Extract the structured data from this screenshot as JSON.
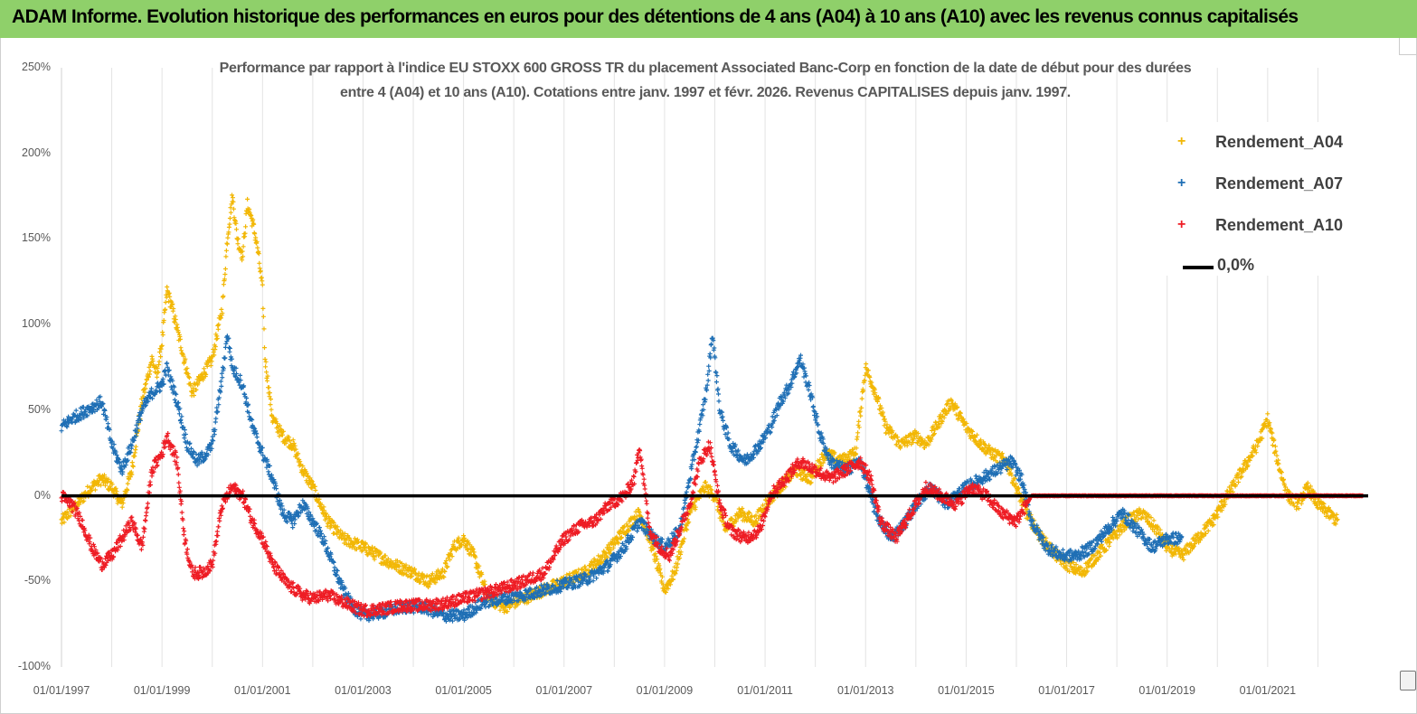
{
  "banner": {
    "title": "ADAM Informe. Evolution historique des performances en euros pour des détentions de 4 ans (A04) à 10 ans (A10) avec les revenus connus capitalisés"
  },
  "chart_data": {
    "type": "scatter",
    "title_line1": "Performance par rapport à l'indice EU STOXX 600 GROSS TR  du placement Associated Banc-Corp en fonction de la date de début pour des durées",
    "title_line2": "entre 4 (A04) et 10 ans (A10). Cotations entre janv. 1997 et févr. 2026. Revenus CAPITALISES depuis janv. 1997.",
    "x_range": [
      "01/01/1997",
      "01/01/2023"
    ],
    "y_range": [
      -100,
      250
    ],
    "y_ticks": [
      "250%",
      "200%",
      "150%",
      "100%",
      "50%",
      "0%",
      "-50%",
      "-100%"
    ],
    "x_ticks": [
      "01/01/1997",
      "01/01/1999",
      "01/01/2001",
      "01/01/2003",
      "01/01/2005",
      "01/01/2007",
      "01/01/2009",
      "01/01/2011",
      "01/01/2013",
      "01/01/2015",
      "01/01/2017",
      "01/01/2019",
      "01/01/2021"
    ],
    "grid": "vertical",
    "legend_position": "top-right",
    "legend": [
      {
        "key": "A04",
        "label": "Rendement_A04"
      },
      {
        "key": "A07",
        "label": "Rendement_A07"
      },
      {
        "key": "A10",
        "label": "Rendement_A10"
      },
      {
        "key": "zero",
        "label": "0,0%"
      }
    ],
    "colors": {
      "A04": "#f2b705",
      "A07": "#1f6fb5",
      "A10": "#ee1c24",
      "zero": "#000000"
    },
    "series": [
      {
        "key": "A04",
        "name": "Rendement_A04",
        "points": [
          [
            1997.0,
            -15
          ],
          [
            1997.3,
            -5
          ],
          [
            1997.6,
            5
          ],
          [
            1997.8,
            10
          ],
          [
            1998.0,
            5
          ],
          [
            1998.2,
            -5
          ],
          [
            1998.4,
            15
          ],
          [
            1998.6,
            55
          ],
          [
            1998.8,
            80
          ],
          [
            1998.9,
            70
          ],
          [
            1999.0,
            90
          ],
          [
            1999.1,
            120
          ],
          [
            1999.2,
            110
          ],
          [
            1999.4,
            85
          ],
          [
            1999.6,
            60
          ],
          [
            1999.8,
            70
          ],
          [
            2000.0,
            80
          ],
          [
            2000.2,
            110
          ],
          [
            2000.3,
            150
          ],
          [
            2000.4,
            175
          ],
          [
            2000.5,
            150
          ],
          [
            2000.6,
            140
          ],
          [
            2000.7,
            170
          ],
          [
            2000.8,
            160
          ],
          [
            2000.9,
            145
          ],
          [
            2001.0,
            120
          ],
          [
            2001.05,
            80
          ],
          [
            2001.2,
            45
          ],
          [
            2001.4,
            35
          ],
          [
            2001.6,
            30
          ],
          [
            2001.8,
            15
          ],
          [
            2002.0,
            5
          ],
          [
            2002.3,
            -15
          ],
          [
            2002.6,
            -25
          ],
          [
            2003.0,
            -30
          ],
          [
            2003.3,
            -35
          ],
          [
            2003.6,
            -40
          ],
          [
            2004.0,
            -45
          ],
          [
            2004.3,
            -50
          ],
          [
            2004.6,
            -45
          ],
          [
            2004.8,
            -30
          ],
          [
            2005.0,
            -25
          ],
          [
            2005.2,
            -35
          ],
          [
            2005.5,
            -60
          ],
          [
            2005.8,
            -65
          ],
          [
            2006.2,
            -60
          ],
          [
            2006.6,
            -55
          ],
          [
            2007.0,
            -50
          ],
          [
            2007.4,
            -45
          ],
          [
            2007.8,
            -35
          ],
          [
            2008.2,
            -20
          ],
          [
            2008.5,
            -10
          ],
          [
            2008.7,
            -25
          ],
          [
            2009.0,
            -55
          ],
          [
            2009.2,
            -45
          ],
          [
            2009.5,
            -10
          ],
          [
            2009.8,
            5
          ],
          [
            2010.0,
            0
          ],
          [
            2010.2,
            -20
          ],
          [
            2010.5,
            -10
          ],
          [
            2010.8,
            -15
          ],
          [
            2011.0,
            -5
          ],
          [
            2011.3,
            5
          ],
          [
            2011.6,
            15
          ],
          [
            2011.9,
            10
          ],
          [
            2012.2,
            25
          ],
          [
            2012.5,
            20
          ],
          [
            2012.8,
            25
          ],
          [
            2013.0,
            75
          ],
          [
            2013.2,
            60
          ],
          [
            2013.4,
            40
          ],
          [
            2013.7,
            30
          ],
          [
            2014.0,
            35
          ],
          [
            2014.2,
            30
          ],
          [
            2014.4,
            40
          ],
          [
            2014.7,
            55
          ],
          [
            2015.0,
            40
          ],
          [
            2015.3,
            30
          ],
          [
            2015.5,
            25
          ],
          [
            2015.8,
            20
          ],
          [
            2016.0,
            5
          ],
          [
            2016.2,
            -10
          ],
          [
            2016.5,
            -25
          ],
          [
            2016.8,
            -35
          ],
          [
            2017.0,
            -40
          ],
          [
            2017.3,
            -45
          ],
          [
            2017.6,
            -35
          ],
          [
            2017.9,
            -25
          ],
          [
            2018.2,
            -15
          ],
          [
            2018.5,
            -10
          ],
          [
            2018.8,
            -20
          ],
          [
            2019.0,
            -30
          ],
          [
            2019.3,
            -35
          ],
          [
            2019.6,
            -25
          ],
          [
            2019.9,
            -15
          ],
          [
            2020.2,
            0
          ],
          [
            2020.5,
            15
          ],
          [
            2020.8,
            30
          ],
          [
            2021.0,
            45
          ],
          [
            2021.2,
            20
          ],
          [
            2021.4,
            0
          ],
          [
            2021.6,
            -5
          ],
          [
            2021.8,
            5
          ],
          [
            2022.0,
            -5
          ],
          [
            2022.2,
            -10
          ],
          [
            2022.4,
            -15
          ]
        ]
      },
      {
        "key": "A07",
        "name": "Rendement_A07",
        "points": [
          [
            1997.0,
            40
          ],
          [
            1997.2,
            45
          ],
          [
            1997.5,
            50
          ],
          [
            1997.8,
            55
          ],
          [
            1998.0,
            30
          ],
          [
            1998.2,
            15
          ],
          [
            1998.4,
            30
          ],
          [
            1998.6,
            50
          ],
          [
            1998.8,
            60
          ],
          [
            1999.0,
            65
          ],
          [
            1999.1,
            75
          ],
          [
            1999.3,
            55
          ],
          [
            1999.5,
            30
          ],
          [
            1999.7,
            20
          ],
          [
            1999.9,
            25
          ],
          [
            2000.0,
            30
          ],
          [
            2000.2,
            70
          ],
          [
            2000.3,
            95
          ],
          [
            2000.4,
            75
          ],
          [
            2000.6,
            65
          ],
          [
            2000.8,
            40
          ],
          [
            2001.0,
            25
          ],
          [
            2001.2,
            10
          ],
          [
            2001.4,
            -10
          ],
          [
            2001.6,
            -15
          ],
          [
            2001.8,
            -5
          ],
          [
            2002.0,
            -15
          ],
          [
            2002.2,
            -25
          ],
          [
            2002.4,
            -40
          ],
          [
            2002.6,
            -55
          ],
          [
            2002.8,
            -65
          ],
          [
            2003.0,
            -70
          ],
          [
            2003.4,
            -68
          ],
          [
            2003.8,
            -65
          ],
          [
            2004.2,
            -65
          ],
          [
            2004.6,
            -70
          ],
          [
            2005.0,
            -70
          ],
          [
            2005.4,
            -62
          ],
          [
            2005.8,
            -60
          ],
          [
            2006.2,
            -58
          ],
          [
            2006.6,
            -55
          ],
          [
            2007.0,
            -52
          ],
          [
            2007.5,
            -48
          ],
          [
            2007.9,
            -40
          ],
          [
            2008.2,
            -30
          ],
          [
            2008.5,
            -15
          ],
          [
            2008.8,
            -25
          ],
          [
            2009.0,
            -30
          ],
          [
            2009.3,
            -20
          ],
          [
            2009.5,
            10
          ],
          [
            2009.7,
            40
          ],
          [
            2009.85,
            65
          ],
          [
            2009.95,
            95
          ],
          [
            2010.1,
            50
          ],
          [
            2010.3,
            30
          ],
          [
            2010.6,
            20
          ],
          [
            2010.9,
            30
          ],
          [
            2011.1,
            40
          ],
          [
            2011.3,
            55
          ],
          [
            2011.5,
            65
          ],
          [
            2011.7,
            80
          ],
          [
            2011.9,
            60
          ],
          [
            2012.1,
            35
          ],
          [
            2012.3,
            20
          ],
          [
            2012.6,
            15
          ],
          [
            2012.9,
            20
          ],
          [
            2013.2,
            -10
          ],
          [
            2013.5,
            -25
          ],
          [
            2013.8,
            -15
          ],
          [
            2014.0,
            -5
          ],
          [
            2014.3,
            5
          ],
          [
            2014.6,
            -5
          ],
          [
            2015.0,
            5
          ],
          [
            2015.3,
            10
          ],
          [
            2015.6,
            15
          ],
          [
            2015.9,
            20
          ],
          [
            2016.1,
            10
          ],
          [
            2016.3,
            -15
          ],
          [
            2016.6,
            -30
          ],
          [
            2016.9,
            -35
          ],
          [
            2017.2,
            -35
          ],
          [
            2017.5,
            -30
          ],
          [
            2017.8,
            -20
          ],
          [
            2018.1,
            -10
          ],
          [
            2018.4,
            -20
          ],
          [
            2018.7,
            -30
          ],
          [
            2019.0,
            -25
          ],
          [
            2019.3,
            -25
          ]
        ]
      },
      {
        "key": "A10",
        "name": "Rendement_A10",
        "points": [
          [
            1997.0,
            0
          ],
          [
            1997.2,
            -5
          ],
          [
            1997.4,
            -15
          ],
          [
            1997.6,
            -30
          ],
          [
            1997.8,
            -40
          ],
          [
            1998.0,
            -35
          ],
          [
            1998.2,
            -25
          ],
          [
            1998.4,
            -15
          ],
          [
            1998.6,
            -30
          ],
          [
            1998.8,
            15
          ],
          [
            1999.0,
            25
          ],
          [
            1999.1,
            35
          ],
          [
            1999.3,
            20
          ],
          [
            1999.45,
            -25
          ],
          [
            1999.6,
            -45
          ],
          [
            1999.8,
            -45
          ],
          [
            2000.0,
            -40
          ],
          [
            2000.2,
            -5
          ],
          [
            2000.4,
            5
          ],
          [
            2000.6,
            0
          ],
          [
            2000.8,
            -15
          ],
          [
            2001.0,
            -25
          ],
          [
            2001.2,
            -40
          ],
          [
            2001.5,
            -52
          ],
          [
            2001.8,
            -58
          ],
          [
            2002.0,
            -60
          ],
          [
            2002.3,
            -58
          ],
          [
            2002.6,
            -62
          ],
          [
            2003.0,
            -67
          ],
          [
            2003.4,
            -66
          ],
          [
            2003.8,
            -64
          ],
          [
            2004.2,
            -64
          ],
          [
            2004.6,
            -63
          ],
          [
            2005.0,
            -60
          ],
          [
            2005.4,
            -57
          ],
          [
            2005.8,
            -54
          ],
          [
            2006.2,
            -50
          ],
          [
            2006.6,
            -45
          ],
          [
            2007.0,
            -25
          ],
          [
            2007.3,
            -18
          ],
          [
            2007.6,
            -15
          ],
          [
            2007.9,
            -5
          ],
          [
            2008.2,
            0
          ],
          [
            2008.4,
            10
          ],
          [
            2008.5,
            30
          ],
          [
            2008.7,
            -20
          ],
          [
            2008.9,
            -30
          ],
          [
            2009.1,
            -35
          ],
          [
            2009.3,
            -20
          ],
          [
            2009.5,
            -5
          ],
          [
            2009.7,
            20
          ],
          [
            2009.9,
            30
          ],
          [
            2010.1,
            -5
          ],
          [
            2010.3,
            -20
          ],
          [
            2010.6,
            -25
          ],
          [
            2010.9,
            -20
          ],
          [
            2011.1,
            0
          ],
          [
            2011.4,
            10
          ],
          [
            2011.7,
            20
          ],
          [
            2012.0,
            15
          ],
          [
            2012.3,
            10
          ],
          [
            2012.6,
            15
          ],
          [
            2012.9,
            20
          ],
          [
            2013.1,
            10
          ],
          [
            2013.3,
            -15
          ],
          [
            2013.6,
            -25
          ],
          [
            2013.9,
            -10
          ],
          [
            2014.2,
            5
          ],
          [
            2014.5,
            0
          ],
          [
            2014.8,
            -5
          ],
          [
            2015.1,
            5
          ],
          [
            2015.4,
            0
          ],
          [
            2015.7,
            -10
          ],
          [
            2016.0,
            -15
          ],
          [
            2016.3,
            0
          ],
          [
            2016.6,
            0
          ],
          [
            2017.0,
            0
          ],
          [
            2017.5,
            0
          ],
          [
            2018.0,
            0
          ],
          [
            2018.5,
            0
          ],
          [
            2019.0,
            0
          ],
          [
            2019.5,
            0
          ],
          [
            2020.0,
            0
          ],
          [
            2020.5,
            0
          ],
          [
            2021.0,
            0
          ],
          [
            2021.5,
            0
          ],
          [
            2022.0,
            0
          ],
          [
            2022.5,
            0
          ],
          [
            2022.9,
            0
          ]
        ]
      }
    ]
  }
}
